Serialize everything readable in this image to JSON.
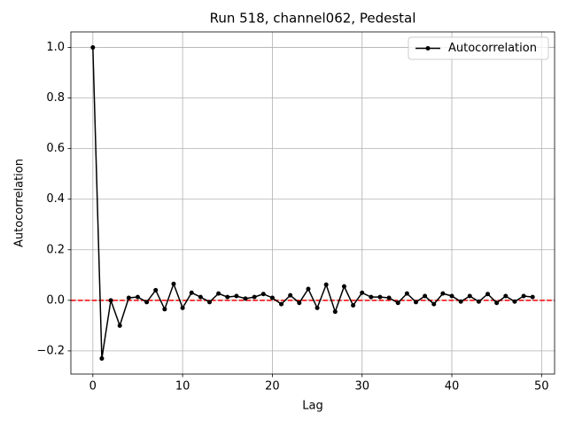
{
  "chart_data": {
    "type": "line",
    "title": "Run 518, channel062, Pedestal",
    "xlabel": "Lag",
    "ylabel": "Autocorrelation",
    "x": [
      0,
      1,
      2,
      3,
      4,
      5,
      6,
      7,
      8,
      9,
      10,
      11,
      12,
      13,
      14,
      15,
      16,
      17,
      18,
      19,
      20,
      21,
      22,
      23,
      24,
      25,
      26,
      27,
      28,
      29,
      30,
      31,
      32,
      33,
      34,
      35,
      36,
      37,
      38,
      39,
      40,
      41,
      42,
      43,
      44,
      45,
      46,
      47,
      48,
      49
    ],
    "series": [
      {
        "name": "Autocorrelation",
        "color": "#000000",
        "values": [
          1.0,
          -0.23,
          0.0,
          -0.1,
          0.01,
          0.013,
          -0.007,
          0.04,
          -0.035,
          0.065,
          -0.03,
          0.03,
          0.013,
          -0.007,
          0.027,
          0.013,
          0.017,
          0.007,
          0.013,
          0.025,
          0.01,
          -0.015,
          0.02,
          -0.01,
          0.045,
          -0.03,
          0.062,
          -0.045,
          0.055,
          -0.02,
          0.03,
          0.013,
          0.013,
          0.01,
          -0.01,
          0.027,
          -0.007,
          0.017,
          -0.015,
          0.027,
          0.017,
          -0.005,
          0.017,
          -0.005,
          0.025,
          -0.01,
          0.017,
          -0.005,
          0.017,
          0.013
        ]
      }
    ],
    "hlines": [
      {
        "y": 0,
        "color": "#ff0000",
        "style": "dashed"
      }
    ],
    "xlim": [
      -2.45,
      51.45
    ],
    "xticks": [
      0,
      10,
      20,
      30,
      40,
      50
    ],
    "ylim": [
      -0.2915,
      1.0615
    ],
    "yticks": [
      {
        "value": -0.2,
        "label": "−0.2"
      },
      {
        "value": 0,
        "label": "0.0"
      },
      {
        "value": 0.2,
        "label": "0.2"
      },
      {
        "value": 0.4,
        "label": "0.4"
      },
      {
        "value": 0.6,
        "label": "0.6"
      },
      {
        "value": 0.8,
        "label": "0.8"
      },
      {
        "value": 1.0,
        "label": "1.0"
      }
    ],
    "grid": true,
    "legend": "upper right"
  }
}
